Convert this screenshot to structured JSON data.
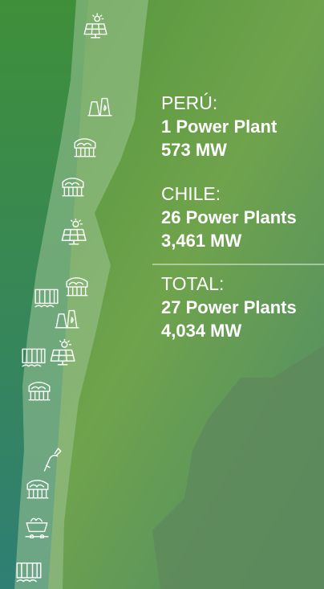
{
  "sections": [
    {
      "country": "PERÚ:",
      "plants": "1 Power Plant",
      "capacity": "573 MW"
    },
    {
      "country": "CHILE:",
      "plants": "26 Power Plants",
      "capacity": "3,461 MW"
    },
    {
      "country": "TOTAL:",
      "plants": "27 Power Plants",
      "capacity": "4,034 MW"
    }
  ]
}
